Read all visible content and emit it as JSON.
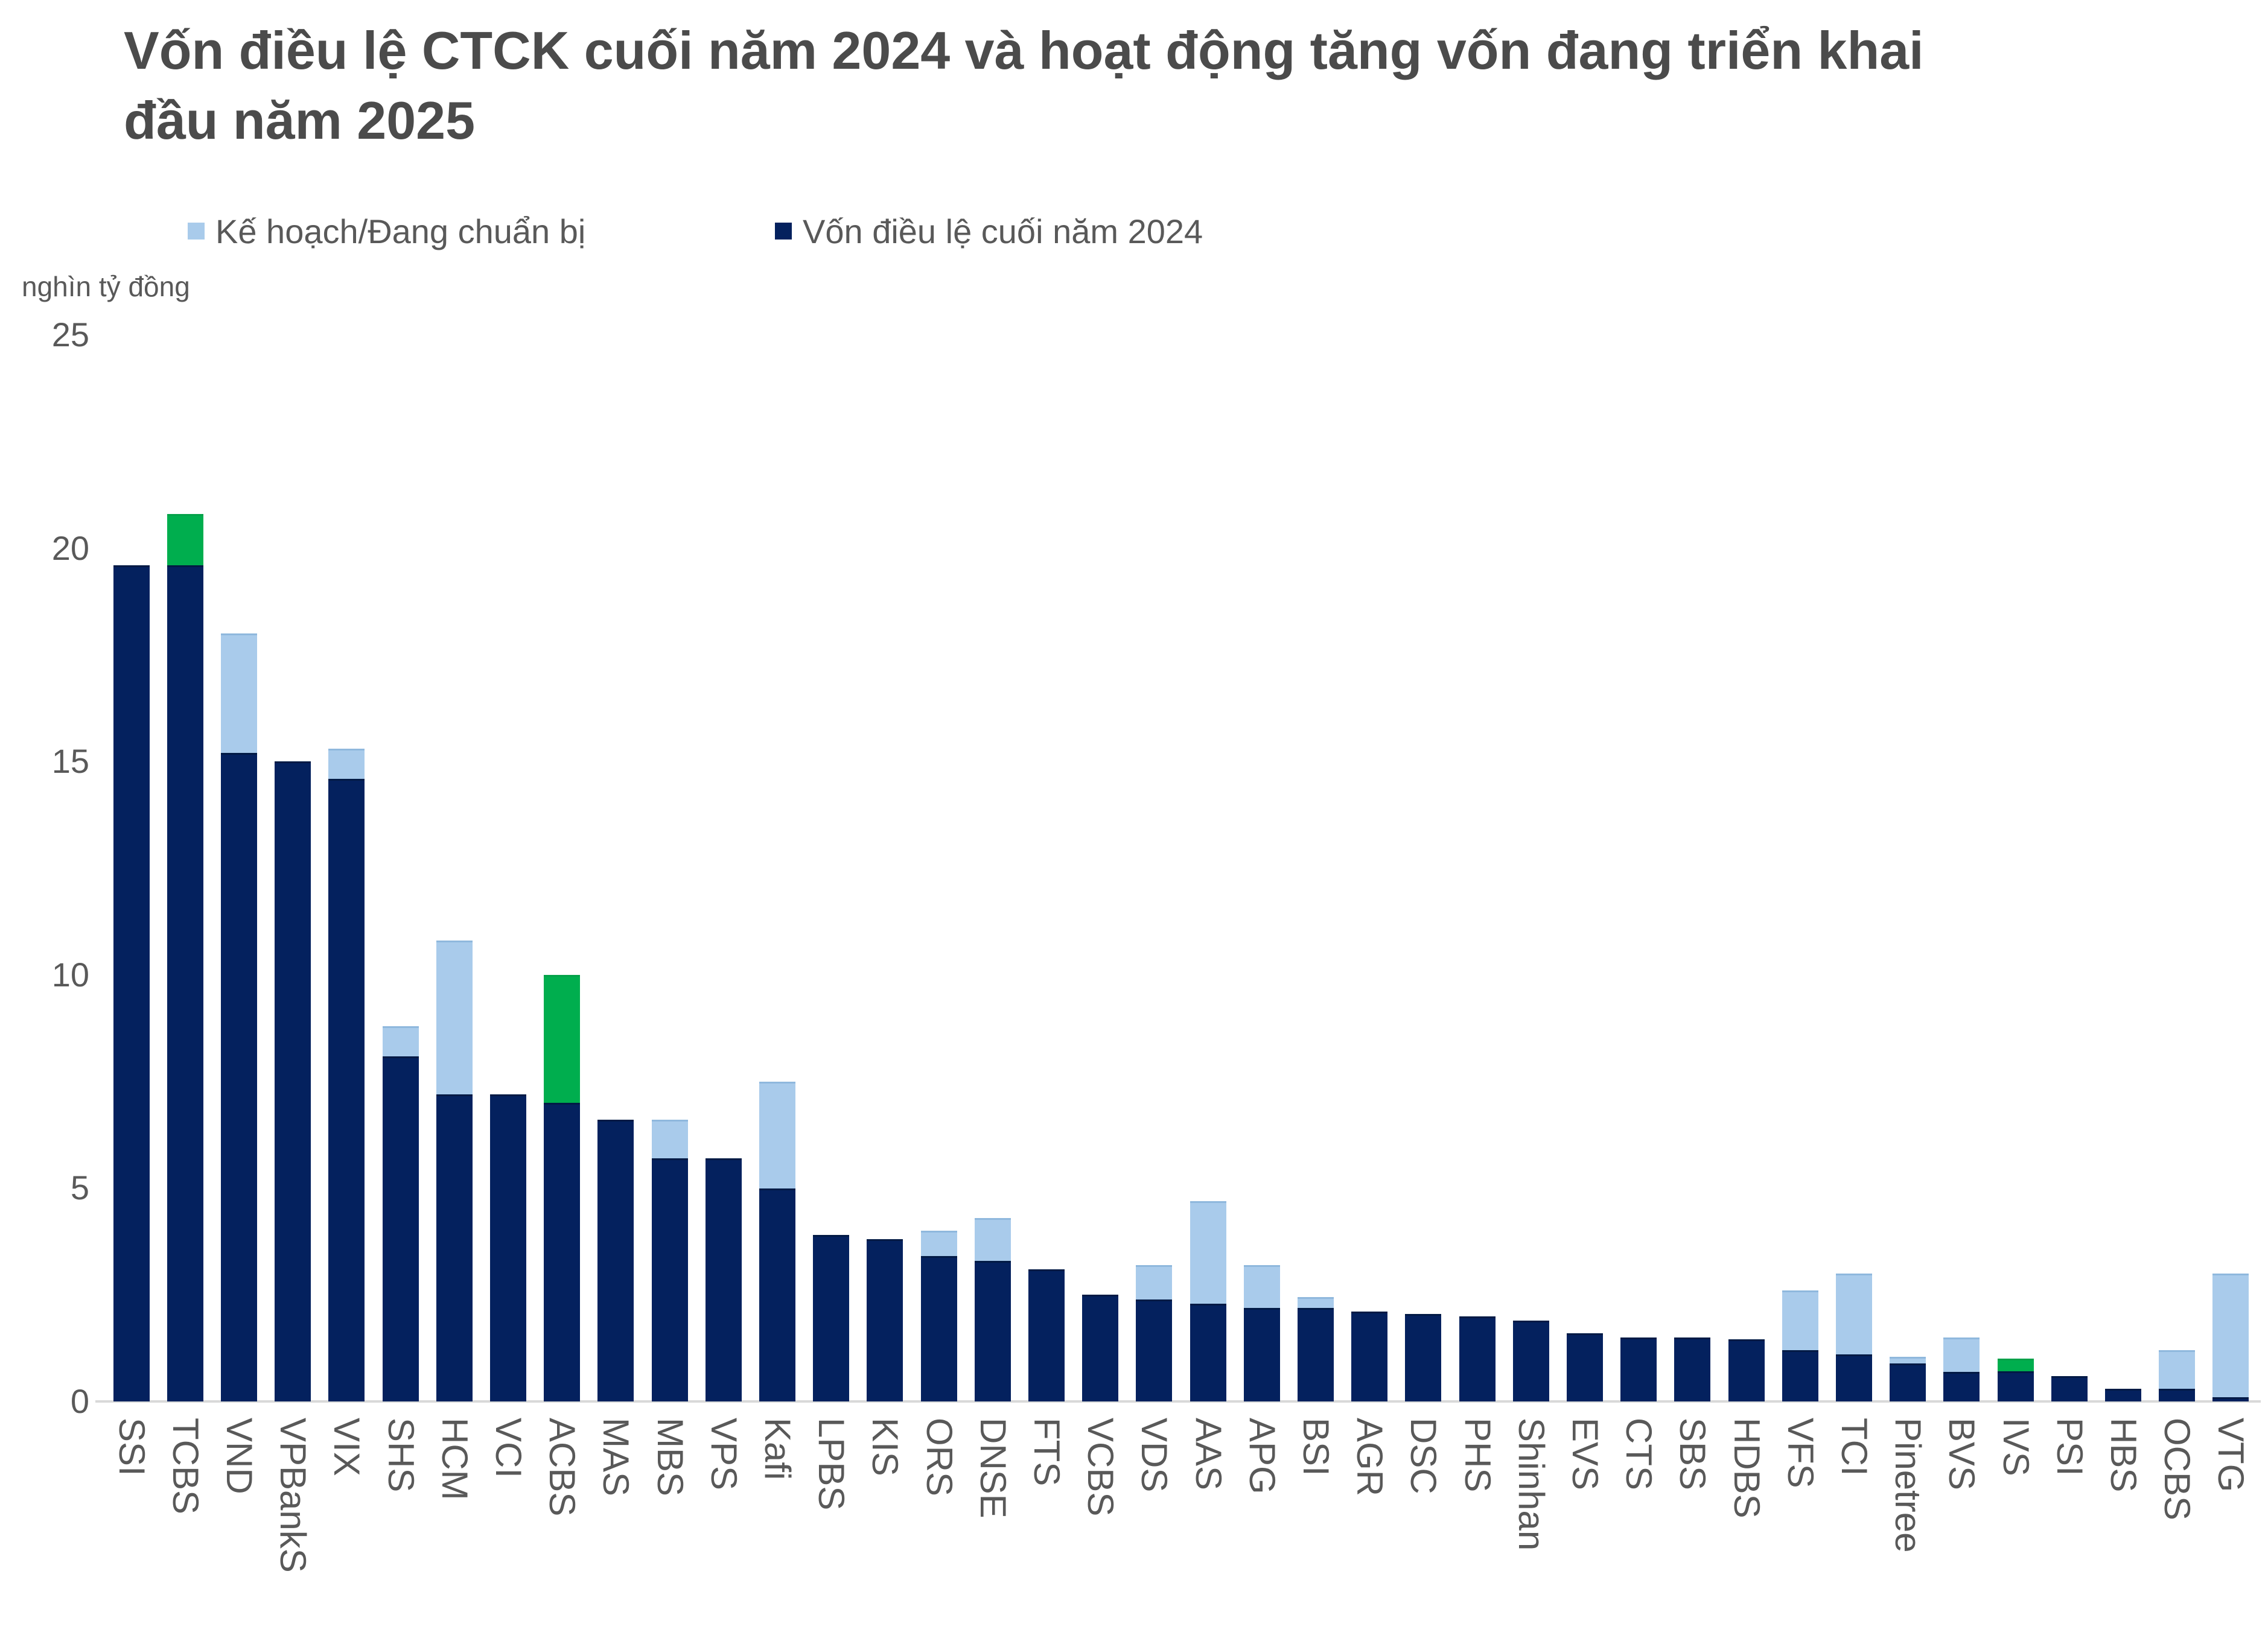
{
  "title": "Vốn điều lệ CTCK cuối năm 2024 và hoạt động tăng vốn đang triển khai đầu năm 2025",
  "legend": [
    {
      "label": "Kế hoạch/Đang chuẩn bị",
      "color": "#a9cbeb",
      "series_id": "plan"
    },
    {
      "label": "Vốn điều lệ cuối năm 2024",
      "color": "#04215e",
      "series_id": "charter_2024"
    }
  ],
  "chart_data": {
    "type": "bar",
    "stacked": true,
    "title": "Vốn điều lệ CTCK cuối năm 2024 và hoạt động tăng vốn đang triển khai đầu năm 2025",
    "unit_label": "nghìn tỷ đồng",
    "ylim": [
      0,
      25
    ],
    "yticks": [
      0,
      5,
      10,
      15,
      20,
      25
    ],
    "grid": false,
    "legend_position": "top",
    "categories": [
      "SSI",
      "TCBS",
      "VND",
      "VPBankS",
      "VIX",
      "SHS",
      "HCM",
      "VCI",
      "ACBS",
      "MAS",
      "MBS",
      "VPS",
      "Kafi",
      "LPBS",
      "KIS",
      "ORS",
      "DNSE",
      "FTS",
      "VCBS",
      "VDS",
      "AAS",
      "APG",
      "BSI",
      "AGR",
      "DSC",
      "PHS",
      "Shinhan",
      "EVS",
      "CTS",
      "SBS",
      "HDBS",
      "VFS",
      "TCI",
      "Pinetree",
      "BVS",
      "IVS",
      "PSI",
      "HBS",
      "OCBS",
      "VTG"
    ],
    "series": [
      {
        "id": "charter_2024",
        "name": "Vốn điều lệ cuối năm 2024",
        "color": "#04215e",
        "in_legend": true,
        "values": [
          19.6,
          19.6,
          15.2,
          15.0,
          14.6,
          8.1,
          7.2,
          7.2,
          7.0,
          6.6,
          5.7,
          5.7,
          5.0,
          3.9,
          3.8,
          3.4,
          3.3,
          3.1,
          2.5,
          2.4,
          2.3,
          2.2,
          2.2,
          2.1,
          2.05,
          2.0,
          1.9,
          1.6,
          1.5,
          1.5,
          1.45,
          1.2,
          1.1,
          0.9,
          0.7,
          0.7,
          0.6,
          0.3,
          0.3,
          0.1
        ]
      },
      {
        "id": "plan",
        "name": "Kế hoạch/Đang chuẩn bị",
        "color": "#a9cbeb",
        "in_legend": true,
        "values": [
          0,
          0,
          2.8,
          0,
          0.7,
          0.7,
          3.6,
          0,
          0,
          0,
          0.9,
          0,
          2.5,
          0,
          0,
          0.6,
          1.0,
          0,
          0,
          0.8,
          2.4,
          1.0,
          0.25,
          0,
          0,
          0,
          0,
          0,
          0,
          0,
          0,
          1.4,
          1.9,
          0.15,
          0.8,
          0,
          0,
          0,
          0.9,
          2.9
        ]
      },
      {
        "id": "green_unlabeled",
        "name": "",
        "color": "#00ae4e",
        "in_legend": false,
        "values": [
          0,
          1.2,
          0,
          0,
          0,
          0,
          0,
          0,
          3.0,
          0,
          0,
          0,
          0,
          0,
          0,
          0,
          0,
          0,
          0,
          0,
          0,
          0,
          0,
          0,
          0,
          0,
          0,
          0,
          0,
          0,
          0,
          0,
          0,
          0,
          0,
          0.3,
          0,
          0,
          0,
          0
        ]
      }
    ],
    "colors": {
      "axis_line": "#d9d9d9",
      "tick_text": "#595959",
      "title_text": "#4b4b4b"
    }
  }
}
